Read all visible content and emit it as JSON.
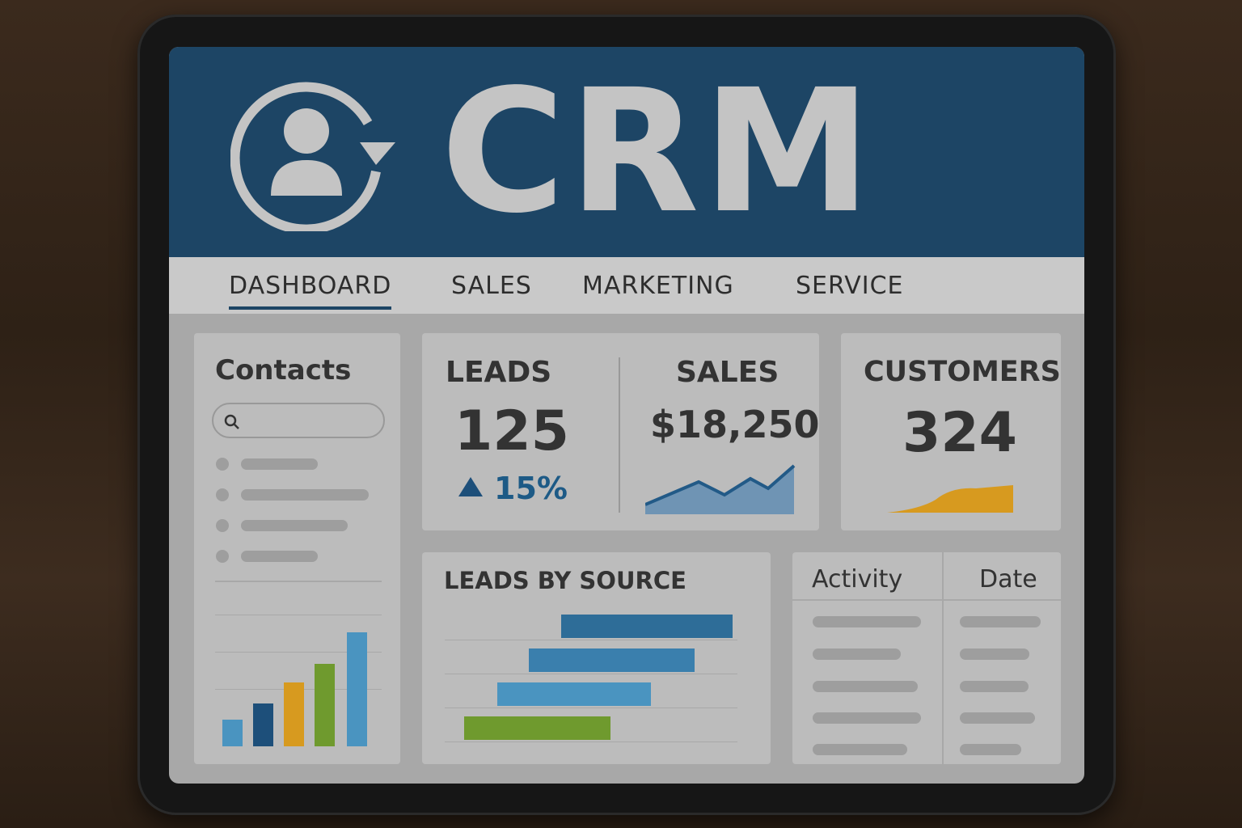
{
  "app": {
    "title": "CRM"
  },
  "nav": {
    "items": [
      {
        "label": "DASHBOARD",
        "active": true
      },
      {
        "label": "SALES"
      },
      {
        "label": "MARKETING"
      },
      {
        "label": "SERVICE"
      }
    ]
  },
  "contacts": {
    "title": "Contacts",
    "search_placeholder": ""
  },
  "leads": {
    "label": "LEADS",
    "value": "125",
    "change": "15%",
    "trend": "up"
  },
  "sales": {
    "label": "SALES",
    "value": "$18,250"
  },
  "customers": {
    "label": "CUSTOMERS",
    "value": "324"
  },
  "leads_by_source": {
    "title": "LEADS BY SOURCE"
  },
  "activity": {
    "columns": [
      "Activity",
      "Date"
    ]
  },
  "colors": {
    "header": "#1d4565",
    "accent_blue": "#2e6d98",
    "orange": "#d79a1f",
    "green": "#6f9a2e",
    "light_blue": "#4a94c0"
  }
}
